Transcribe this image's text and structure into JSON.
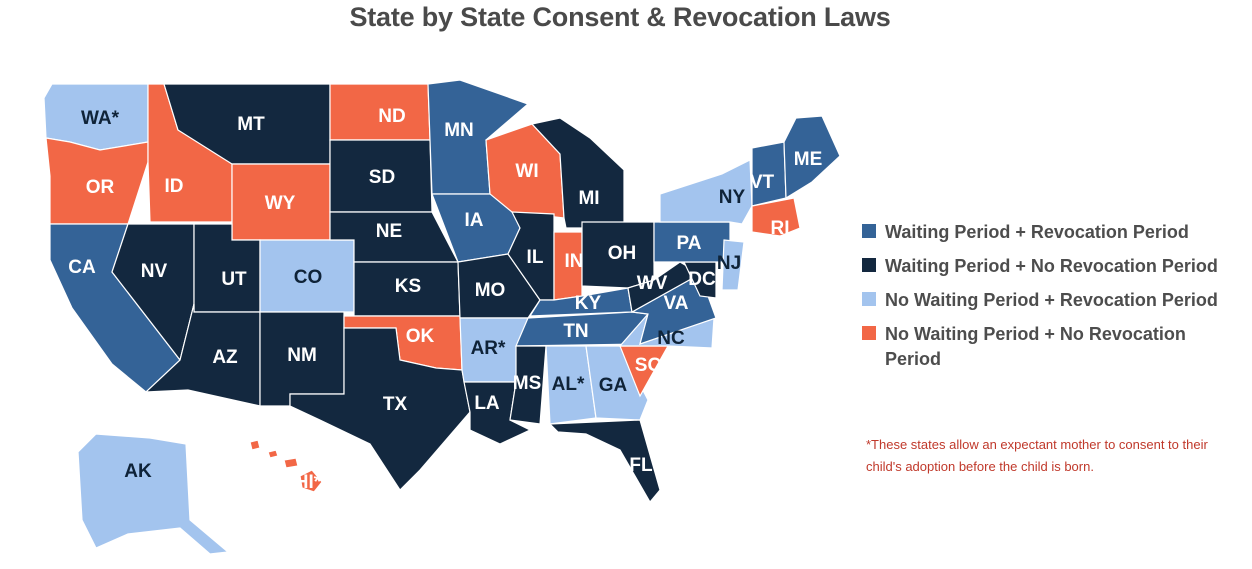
{
  "title": "State by State Consent & Revocation Laws",
  "categories": {
    "wr": {
      "label": "Waiting Period + Revocation Period",
      "color": "#346397"
    },
    "wn": {
      "label": "Waiting Period + No Revocation Period",
      "color": "#13283f"
    },
    "nr": {
      "label": "No Waiting Period + Revocation Period",
      "color": "#a3c4ee"
    },
    "nn": {
      "label": "No Waiting Period + No Revocation Period",
      "color": "#f26746"
    }
  },
  "legend_order": [
    "wr",
    "wn",
    "nr",
    "nn"
  ],
  "footnote": "*These states allow an expectant mother to consent to their child's adoption before the child is born.",
  "states": [
    {
      "abbr": "WA*",
      "cat": "nr"
    },
    {
      "abbr": "OR",
      "cat": "nn"
    },
    {
      "abbr": "CA",
      "cat": "wr"
    },
    {
      "abbr": "NV",
      "cat": "wn"
    },
    {
      "abbr": "ID",
      "cat": "nn"
    },
    {
      "abbr": "MT",
      "cat": "wn"
    },
    {
      "abbr": "WY",
      "cat": "nn"
    },
    {
      "abbr": "UT",
      "cat": "wn"
    },
    {
      "abbr": "AZ",
      "cat": "wn"
    },
    {
      "abbr": "CO",
      "cat": "nr"
    },
    {
      "abbr": "NM",
      "cat": "wn"
    },
    {
      "abbr": "ND",
      "cat": "nn"
    },
    {
      "abbr": "SD",
      "cat": "wn"
    },
    {
      "abbr": "NE",
      "cat": "wn"
    },
    {
      "abbr": "KS",
      "cat": "wn"
    },
    {
      "abbr": "OK",
      "cat": "nn"
    },
    {
      "abbr": "TX",
      "cat": "wn"
    },
    {
      "abbr": "MN",
      "cat": "wr"
    },
    {
      "abbr": "IA",
      "cat": "wr"
    },
    {
      "abbr": "MO",
      "cat": "wn"
    },
    {
      "abbr": "AR*",
      "cat": "nr"
    },
    {
      "abbr": "LA",
      "cat": "wn"
    },
    {
      "abbr": "WI",
      "cat": "nn"
    },
    {
      "abbr": "IL",
      "cat": "wn"
    },
    {
      "abbr": "MI",
      "cat": "wn"
    },
    {
      "abbr": "IN",
      "cat": "nn"
    },
    {
      "abbr": "OH",
      "cat": "wn"
    },
    {
      "abbr": "KY",
      "cat": "wr"
    },
    {
      "abbr": "TN",
      "cat": "wr"
    },
    {
      "abbr": "MS",
      "cat": "wn"
    },
    {
      "abbr": "AL*",
      "cat": "nr"
    },
    {
      "abbr": "GA",
      "cat": "nr"
    },
    {
      "abbr": "FL",
      "cat": "wn"
    },
    {
      "abbr": "SC",
      "cat": "nn"
    },
    {
      "abbr": "NC",
      "cat": "nr"
    },
    {
      "abbr": "VA",
      "cat": "wr"
    },
    {
      "abbr": "WV",
      "cat": "wn"
    },
    {
      "abbr": "DC",
      "cat": "wn"
    },
    {
      "abbr": "PA",
      "cat": "wr"
    },
    {
      "abbr": "NJ",
      "cat": "nr"
    },
    {
      "abbr": "NY",
      "cat": "nr"
    },
    {
      "abbr": "VT",
      "cat": "wr"
    },
    {
      "abbr": "ME",
      "cat": "wr"
    },
    {
      "abbr": "RI",
      "cat": "nn"
    },
    {
      "abbr": "AK",
      "cat": "nr"
    },
    {
      "abbr": "HI*",
      "cat": "nn"
    }
  ]
}
